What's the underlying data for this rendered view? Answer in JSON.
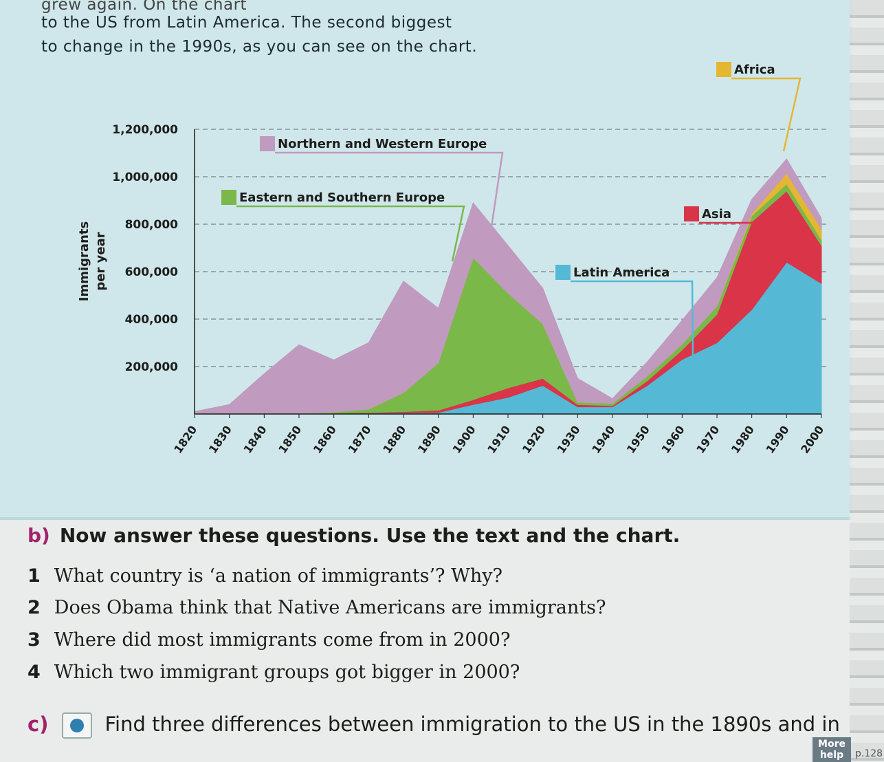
{
  "intro_lines": [
    "grew again. On the chart",
    "to the US from Latin America. The second biggest",
    "to change in the 1990s, as you can see on the chart."
  ],
  "chart_data": {
    "type": "area",
    "stacked": true,
    "title": "",
    "ylabel": "Immigrants per year",
    "ylabel_lines": [
      "Immigrants",
      "per year"
    ],
    "xlabel": "",
    "ylim": [
      0,
      1200000
    ],
    "y_ticks": [
      200000,
      400000,
      600000,
      800000,
      1000000,
      1200000
    ],
    "y_tick_labels": [
      "200,000",
      "400,000",
      "600,000",
      "800,000",
      "1,000,000",
      "1,200,000"
    ],
    "x": [
      1820,
      1830,
      1840,
      1850,
      1860,
      1870,
      1880,
      1890,
      1900,
      1910,
      1920,
      1930,
      1940,
      1950,
      1960,
      1970,
      1980,
      1990,
      2000
    ],
    "x_tick_labels": [
      "1820",
      "1830",
      "1840",
      "1850",
      "1860",
      "1870",
      "1880",
      "1890",
      "1900",
      "1910",
      "1920",
      "1930",
      "1940",
      "1950",
      "1960",
      "1970",
      "1980",
      "1990",
      "2000"
    ],
    "grid": "horizontal dashed",
    "series": [
      {
        "name": "Latin America",
        "color": "#55b9d6",
        "values": [
          0,
          0,
          0,
          2000,
          3000,
          4000,
          5000,
          6000,
          40000,
          70000,
          120000,
          30000,
          30000,
          120000,
          230000,
          300000,
          440000,
          640000,
          550000
        ]
      },
      {
        "name": "Asia",
        "color": "#d93448",
        "values": [
          0,
          0,
          0,
          0,
          0,
          2000,
          5000,
          10000,
          20000,
          40000,
          30000,
          10000,
          5000,
          20000,
          40000,
          120000,
          370000,
          300000,
          160000
        ]
      },
      {
        "name": "Eastern and Southern Europe",
        "color": "#7ab84a",
        "values": [
          0,
          0,
          0,
          0,
          5000,
          15000,
          80000,
          200000,
          600000,
          400000,
          230000,
          10000,
          10000,
          20000,
          25000,
          35000,
          25000,
          30000,
          25000
        ]
      },
      {
        "name": "Africa",
        "color": "#e5b632",
        "values": [
          0,
          0,
          0,
          0,
          0,
          0,
          0,
          0,
          0,
          0,
          0,
          0,
          0,
          0,
          0,
          0,
          10000,
          45000,
          45000
        ]
      },
      {
        "name": "Northern and Western Europe",
        "color": "#c09abf",
        "values": [
          10000,
          40000,
          170000,
          290000,
          220000,
          280000,
          470000,
          230000,
          230000,
          200000,
          150000,
          100000,
          20000,
          60000,
          100000,
          120000,
          60000,
          60000,
          45000
        ]
      }
    ],
    "legend": "inline labels"
  },
  "questions": {
    "letter": "b)",
    "heading": "Now answer these questions. Use the text and the chart.",
    "items": [
      {
        "num": "1",
        "text": "What country is ‘a nation of immigrants’? Why?"
      },
      {
        "num": "2",
        "text": "Does Obama think that Native Americans are immigrants?"
      },
      {
        "num": "3",
        "text": "Where did most immigrants come from in 2000?"
      },
      {
        "num": "4",
        "text": "Which two immigrant groups got bigger in 2000?"
      }
    ]
  },
  "task_c": {
    "letter": "c)",
    "text": "Find three differences between immigration to the US in the 1890s and in"
  },
  "more_help": {
    "line1": "More",
    "line2": "help"
  },
  "page_ref": "p.128"
}
